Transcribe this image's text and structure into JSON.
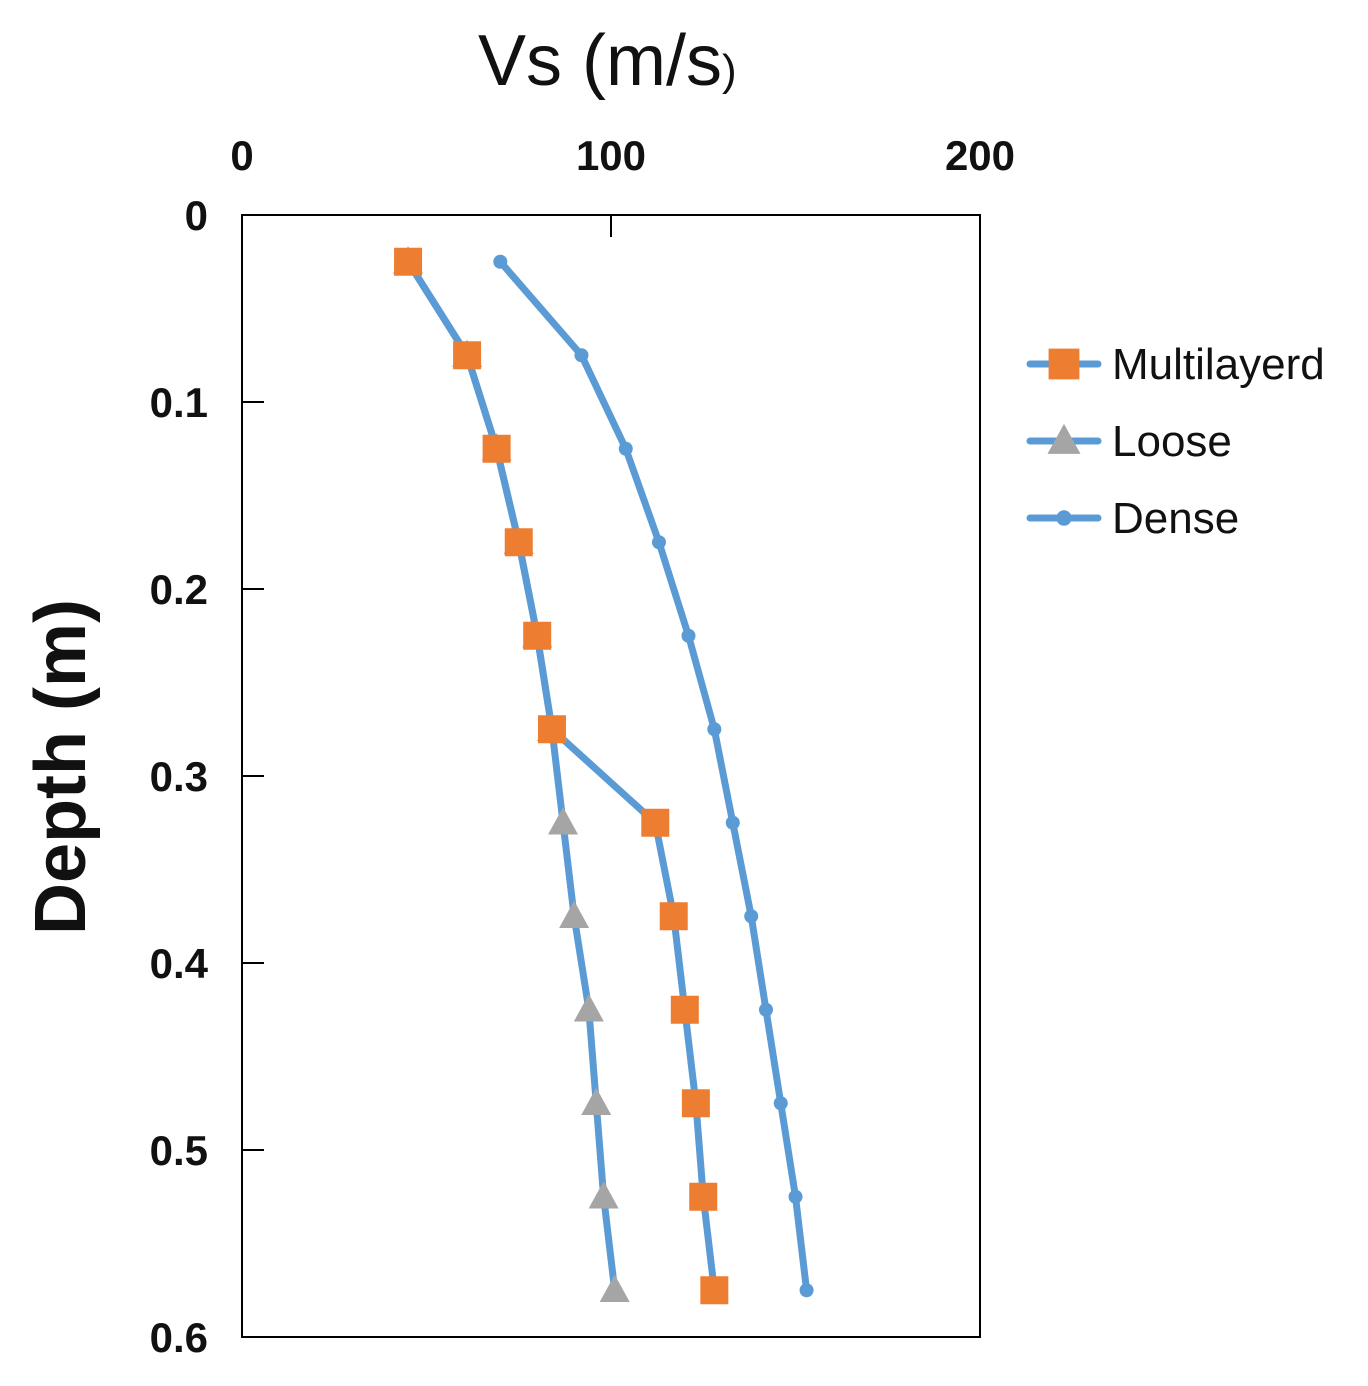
{
  "chart_data": {
    "type": "line",
    "title": "",
    "xlabel": "Vs (m/s",
    "xlabel_close": ")",
    "ylabel": "Depth (m)",
    "x_axis_position": "top",
    "y_axis_inverted": true,
    "xlim": [
      0,
      200
    ],
    "ylim": [
      0,
      0.6
    ],
    "x_ticks": [
      0,
      100,
      200
    ],
    "x_tick_labels": [
      "0",
      "100",
      "200"
    ],
    "y_ticks": [
      0,
      0.1,
      0.2,
      0.3,
      0.4,
      0.5,
      0.6
    ],
    "y_tick_labels": [
      "0",
      "0.1",
      "0.2",
      "0.3",
      "0.4",
      "0.5",
      "0.6"
    ],
    "grid": false,
    "legend_position": "right",
    "series": [
      {
        "name": "Multilayerd",
        "marker": "square",
        "line_color": "#5b9bd5",
        "marker_color": "#ed7d31",
        "points": [
          {
            "vs": 45,
            "depth": 0.025
          },
          {
            "vs": 61,
            "depth": 0.075
          },
          {
            "vs": 69,
            "depth": 0.125
          },
          {
            "vs": 75,
            "depth": 0.175
          },
          {
            "vs": 80,
            "depth": 0.225
          },
          {
            "vs": 84,
            "depth": 0.275
          },
          {
            "vs": 112,
            "depth": 0.325
          },
          {
            "vs": 117,
            "depth": 0.375
          },
          {
            "vs": 120,
            "depth": 0.425
          },
          {
            "vs": 123,
            "depth": 0.475
          },
          {
            "vs": 125,
            "depth": 0.525
          },
          {
            "vs": 128,
            "depth": 0.575
          }
        ]
      },
      {
        "name": "Loose",
        "marker": "triangle",
        "line_color": "#5b9bd5",
        "marker_color": "#a5a5a5",
        "points": [
          {
            "vs": 45,
            "depth": 0.025
          },
          {
            "vs": 61,
            "depth": 0.075
          },
          {
            "vs": 69,
            "depth": 0.125
          },
          {
            "vs": 75,
            "depth": 0.175
          },
          {
            "vs": 80,
            "depth": 0.225
          },
          {
            "vs": 84,
            "depth": 0.275
          },
          {
            "vs": 87,
            "depth": 0.325
          },
          {
            "vs": 90,
            "depth": 0.375
          },
          {
            "vs": 94,
            "depth": 0.425
          },
          {
            "vs": 96,
            "depth": 0.475
          },
          {
            "vs": 98,
            "depth": 0.525
          },
          {
            "vs": 101,
            "depth": 0.575
          }
        ]
      },
      {
        "name": "Dense",
        "marker": "circle",
        "line_color": "#5b9bd5",
        "marker_color": "#5b9bd5",
        "points": [
          {
            "vs": 70,
            "depth": 0.025
          },
          {
            "vs": 92,
            "depth": 0.075
          },
          {
            "vs": 104,
            "depth": 0.125
          },
          {
            "vs": 113,
            "depth": 0.175
          },
          {
            "vs": 121,
            "depth": 0.225
          },
          {
            "vs": 128,
            "depth": 0.275
          },
          {
            "vs": 133,
            "depth": 0.325
          },
          {
            "vs": 138,
            "depth": 0.375
          },
          {
            "vs": 142,
            "depth": 0.425
          },
          {
            "vs": 146,
            "depth": 0.475
          },
          {
            "vs": 150,
            "depth": 0.525
          },
          {
            "vs": 153,
            "depth": 0.575
          }
        ]
      }
    ]
  }
}
